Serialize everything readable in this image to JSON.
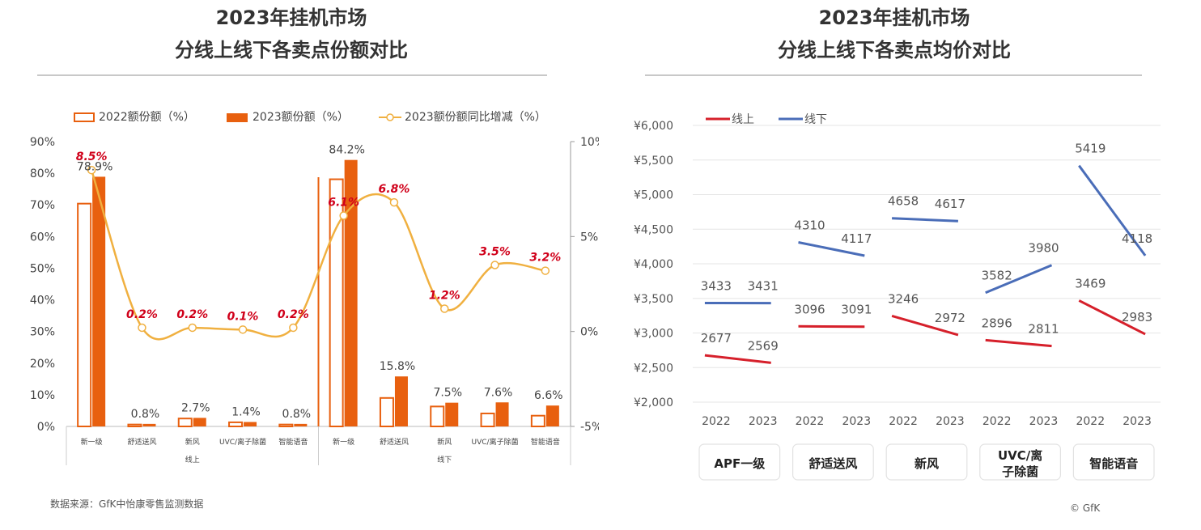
{
  "left": {
    "title_line1": "2023年挂机市场",
    "title_line2": "分线上线下各卖点份额对比",
    "legend": [
      "2022额份额（%）",
      "2023额份额（%）",
      "2023额份额同比增减（%）"
    ],
    "y_left_ticks": [
      "90%",
      "80%",
      "70%",
      "60%",
      "50%",
      "40%",
      "30%",
      "20%",
      "10%",
      "0%"
    ],
    "y_right_ticks": [
      "10%",
      "5%",
      "0%",
      "-5%"
    ],
    "group_labels": [
      "线上",
      "线下"
    ],
    "source": "数据来源：GfK中怡康零售监测数据"
  },
  "right": {
    "title_line1": "2023年挂机市场",
    "title_line2": "分线上线下各卖点均价对比",
    "legend": [
      "线上",
      "线下"
    ],
    "y_ticks": [
      "¥6,000",
      "¥5,500",
      "¥5,000",
      "¥4,500",
      "¥4,000",
      "¥3,500",
      "¥3,000",
      "¥2,500",
      "¥2,000"
    ],
    "copyright": "© GfK"
  },
  "chart_data": [
    {
      "type": "bar",
      "title": "2023年挂机市场 分线上线下各卖点份额对比",
      "categories": [
        "新一级",
        "舒适送风",
        "新风",
        "UVC/离子除菌",
        "智能语音",
        "新一级",
        "舒适送风",
        "新风",
        "UVC/离子除菌",
        "智能语音"
      ],
      "groups": [
        {
          "name": "线上",
          "count": 5
        },
        {
          "name": "线下",
          "count": 5
        }
      ],
      "ylim": [
        0,
        90
      ],
      "y2lim": [
        -5,
        10
      ],
      "series": [
        {
          "name": "2022额份额（%）",
          "values": [
            70.4,
            0.6,
            2.5,
            1.3,
            0.6,
            78.1,
            9.0,
            6.3,
            4.1,
            3.4
          ],
          "labels": [
            "",
            "",
            "",
            "",
            "",
            "",
            "",
            "",
            "",
            ""
          ]
        },
        {
          "name": "2023额份额（%）",
          "values": [
            78.9,
            0.8,
            2.7,
            1.4,
            0.8,
            84.2,
            15.8,
            7.5,
            7.6,
            6.6
          ],
          "labels": [
            "78.9%",
            "0.8%",
            "2.7%",
            "1.4%",
            "0.8%",
            "84.2%",
            "15.8%",
            "7.5%",
            "7.6%",
            "6.6%"
          ]
        },
        {
          "name": "2023额份额同比增减（%）",
          "type": "line",
          "axis": "right",
          "values": [
            8.5,
            0.2,
            0.2,
            0.1,
            0.2,
            6.1,
            6.8,
            1.2,
            3.5,
            3.2
          ],
          "labels": [
            "8.5%",
            "0.2%",
            "0.2%",
            "0.1%",
            "0.2%",
            "6.1%",
            "6.8%",
            "1.2%",
            "3.5%",
            "3.2%"
          ]
        }
      ]
    },
    {
      "type": "line",
      "title": "2023年挂机市场 分线上线下各卖点均价对比",
      "categories": [
        "APF一级",
        "舒适送风",
        "新风",
        "UVC/离子除菌",
        "智能语音"
      ],
      "category_display": [
        [
          "APF一级"
        ],
        [
          "舒适送风"
        ],
        [
          "新风"
        ],
        [
          "UVC/离",
          "子除菌"
        ],
        [
          "智能语音"
        ]
      ],
      "x": [
        "2022",
        "2023"
      ],
      "ylim": [
        2000,
        6000
      ],
      "series": [
        {
          "name": "线上",
          "values": [
            [
              2677,
              2569
            ],
            [
              3096,
              3091
            ],
            [
              3246,
              2972
            ],
            [
              2896,
              2811
            ],
            [
              3469,
              2983
            ]
          ]
        },
        {
          "name": "线下",
          "values": [
            [
              3433,
              3431
            ],
            [
              4310,
              4117
            ],
            [
              4658,
              4617
            ],
            [
              3582,
              3980
            ],
            [
              5419,
              4118
            ]
          ]
        }
      ]
    }
  ]
}
